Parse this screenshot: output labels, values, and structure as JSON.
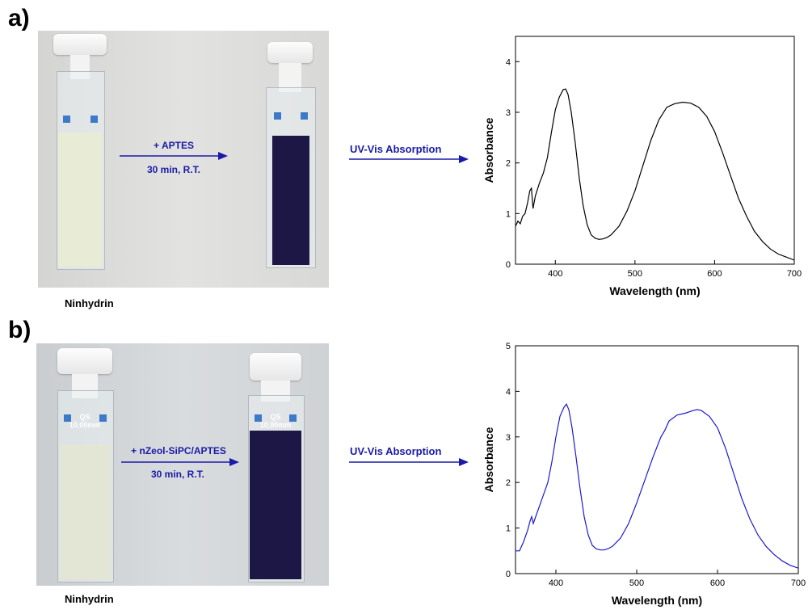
{
  "panels": [
    {
      "label": "a)",
      "caption": "Ninhydrin",
      "reaction_line1": "+ APTES",
      "reaction_line2": "30 min, R.T.",
      "uv_label": "UV-Vis Absorption",
      "cuvette_label": ""
    },
    {
      "label": "b)",
      "caption": "Ninhydrin",
      "reaction_line1": "+ nZeol-SiPC/APTES",
      "reaction_line2": "30 min, R.T.",
      "uv_label": "UV-Vis Absorption",
      "cuvette_label": "QS\n10,00mm"
    }
  ],
  "colors": {
    "arrow": "#1a1aa8",
    "curve_a": "#000000",
    "curve_b": "#1a1ad0",
    "liquid_before": "#e9edd9",
    "liquid_after": "#1d1745"
  },
  "chart_data": [
    {
      "type": "line",
      "xlabel": "Wavelength (nm)",
      "ylabel": "Absorbance",
      "xlim": [
        350,
        700
      ],
      "ylim": [
        0,
        4.5
      ],
      "xticks": [
        400,
        500,
        600,
        700
      ],
      "yticks": [
        0,
        1,
        2,
        3,
        4
      ],
      "series": [
        {
          "x": [
            350,
            353,
            356,
            359,
            362,
            365,
            368,
            370,
            372,
            375,
            380,
            385,
            390,
            395,
            400,
            405,
            410,
            413,
            416,
            420,
            425,
            430,
            435,
            440,
            445,
            450,
            455,
            460,
            465,
            470,
            480,
            490,
            500,
            510,
            520,
            530,
            540,
            550,
            560,
            570,
            580,
            590,
            600,
            610,
            620,
            630,
            640,
            650,
            660,
            670,
            680,
            690,
            700
          ],
          "y": [
            0.75,
            0.85,
            0.8,
            0.95,
            1.0,
            1.2,
            1.45,
            1.5,
            1.1,
            1.35,
            1.6,
            1.8,
            2.1,
            2.6,
            3.05,
            3.3,
            3.45,
            3.46,
            3.35,
            3.0,
            2.4,
            1.7,
            1.15,
            0.78,
            0.58,
            0.51,
            0.49,
            0.5,
            0.53,
            0.58,
            0.75,
            1.05,
            1.45,
            1.95,
            2.45,
            2.85,
            3.1,
            3.17,
            3.2,
            3.18,
            3.1,
            2.92,
            2.62,
            2.2,
            1.75,
            1.3,
            0.95,
            0.65,
            0.45,
            0.3,
            0.2,
            0.14,
            0.08
          ]
        }
      ]
    },
    {
      "type": "line",
      "xlabel": "Wavelength (nm)",
      "ylabel": "Absorbance",
      "xlim": [
        350,
        700
      ],
      "ylim": [
        0,
        5
      ],
      "xticks": [
        400,
        500,
        600,
        700
      ],
      "yticks": [
        0,
        1,
        2,
        3,
        4,
        5
      ],
      "series": [
        {
          "x": [
            350,
            355,
            360,
            365,
            368,
            370,
            372,
            375,
            380,
            385,
            390,
            395,
            400,
            405,
            410,
            413,
            416,
            420,
            425,
            430,
            435,
            440,
            445,
            450,
            455,
            460,
            465,
            470,
            480,
            490,
            500,
            510,
            520,
            530,
            535,
            540,
            550,
            560,
            570,
            575,
            580,
            590,
            600,
            610,
            620,
            630,
            640,
            650,
            660,
            670,
            680,
            690,
            700
          ],
          "y": [
            0.5,
            0.5,
            0.7,
            0.95,
            1.15,
            1.25,
            1.1,
            1.25,
            1.5,
            1.75,
            2.0,
            2.45,
            3.0,
            3.45,
            3.65,
            3.72,
            3.6,
            3.2,
            2.55,
            1.85,
            1.25,
            0.85,
            0.62,
            0.54,
            0.52,
            0.52,
            0.55,
            0.6,
            0.78,
            1.1,
            1.55,
            2.05,
            2.55,
            3.0,
            3.15,
            3.35,
            3.48,
            3.52,
            3.58,
            3.6,
            3.58,
            3.45,
            3.2,
            2.75,
            2.2,
            1.65,
            1.2,
            0.85,
            0.6,
            0.42,
            0.28,
            0.18,
            0.12
          ]
        }
      ]
    }
  ]
}
